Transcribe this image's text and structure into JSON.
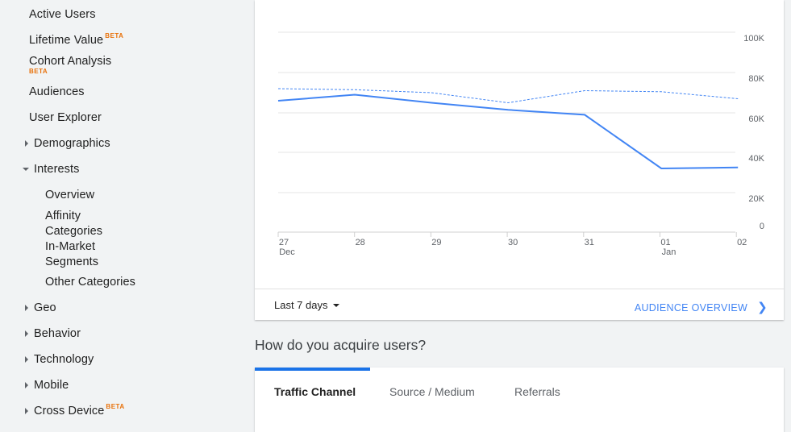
{
  "sidebar": {
    "active_users": "Active Users",
    "lifetime_value": "Lifetime Value",
    "cohort_analysis": "Cohort Analysis",
    "beta": "BETA",
    "audiences": "Audiences",
    "user_explorer": "User Explorer",
    "demographics": "Demographics",
    "interests": "Interests",
    "interests_children": {
      "overview": "Overview",
      "affinity_1": "Affinity",
      "affinity_2": "Categories",
      "inmarket_1": "In-Market",
      "inmarket_2": "Segments",
      "other": "Other Categories"
    },
    "geo": "Geo",
    "behavior": "Behavior",
    "technology": "Technology",
    "mobile": "Mobile",
    "cross_device": "Cross Device"
  },
  "overview_card": {
    "date_range": "Last 7 days",
    "link_label": "AUDIENCE OVERVIEW"
  },
  "acquisition": {
    "title": "How do you acquire users?",
    "tabs": [
      "Traffic Channel",
      "Source / Medium",
      "Referrals"
    ],
    "active_tab": 0
  },
  "colors": {
    "line_current": "#4285f4",
    "accent": "#1a73e8",
    "beta": "#e8710a"
  },
  "chart_data": {
    "type": "line",
    "categories": [
      "27",
      "28",
      "29",
      "30",
      "31",
      "01",
      "02"
    ],
    "category_sublabels": [
      "Dec",
      "",
      "",
      "",
      "",
      "Jan",
      ""
    ],
    "y_ticks": [
      "100K",
      "80K",
      "60K",
      "40K",
      "20K",
      "0"
    ],
    "y_tick_values": [
      100000,
      80000,
      60000,
      40000,
      20000,
      0
    ],
    "ylim": [
      0,
      100000
    ],
    "grid": true,
    "series": [
      {
        "style": "solid",
        "color": "#4285f4",
        "values": [
          66000,
          69000,
          65000,
          61500,
          59000,
          32000,
          32500
        ]
      },
      {
        "style": "dashed",
        "color": "#4285f4",
        "values": [
          72000,
          71500,
          70000,
          65000,
          71000,
          70500,
          67000
        ]
      }
    ]
  }
}
